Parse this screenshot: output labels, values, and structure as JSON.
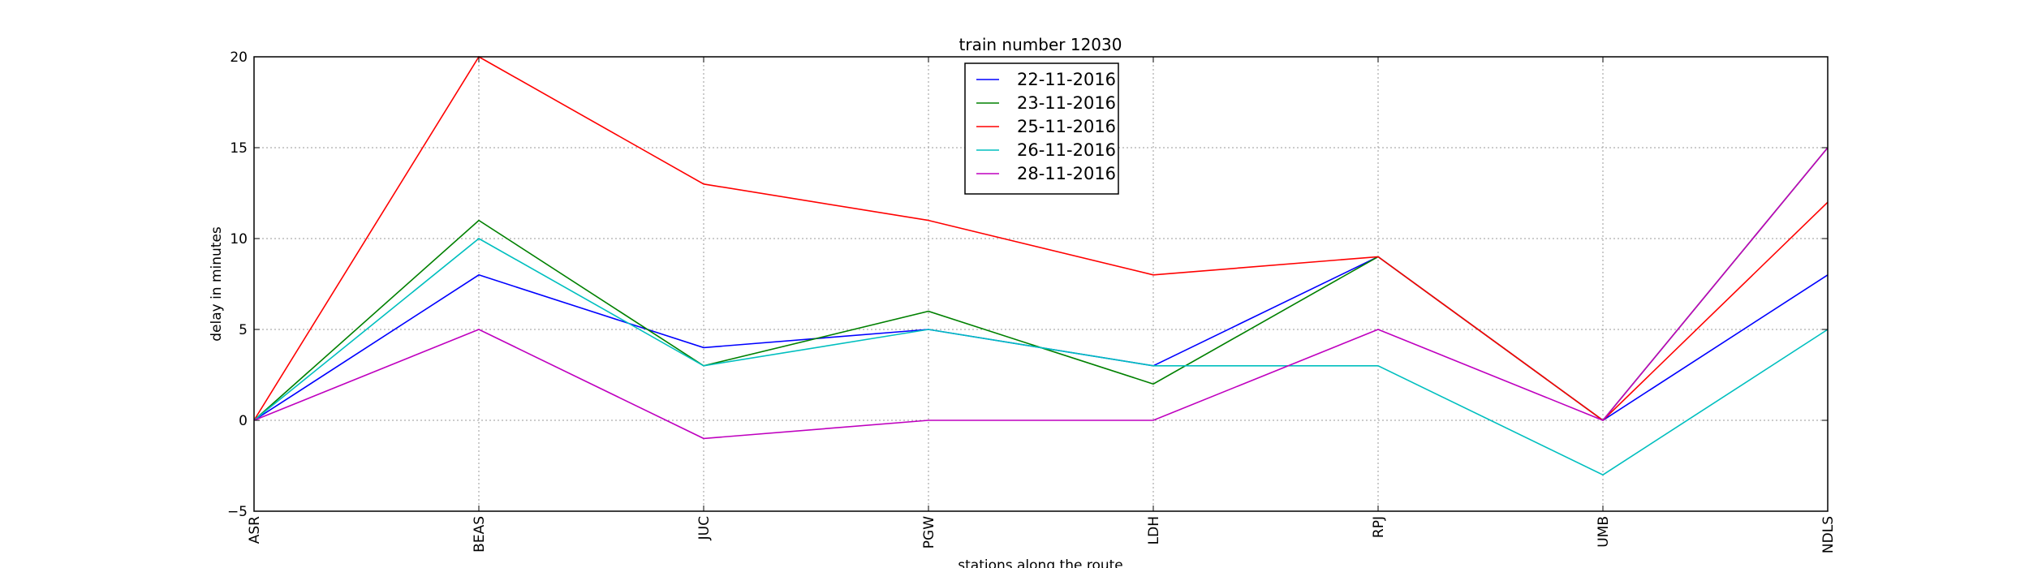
{
  "chart_data": {
    "type": "line",
    "title": "train number 12030",
    "xlabel": "stations along the route",
    "ylabel": "delay in minutes",
    "categories": [
      "ASR",
      "BEAS",
      "JUC",
      "PGW",
      "LDH",
      "RPJ",
      "UMB",
      "NDLS"
    ],
    "ylim": [
      -5,
      20
    ],
    "yticks": [
      -5,
      0,
      5,
      10,
      15,
      20
    ],
    "grid": true,
    "legend_position": "top-center",
    "series": [
      {
        "name": "22-11-2016",
        "color": "#0000ff",
        "values": [
          0,
          8,
          4,
          5,
          3,
          9,
          0,
          8
        ]
      },
      {
        "name": "23-11-2016",
        "color": "#008000",
        "values": [
          0,
          11,
          3,
          6,
          2,
          9,
          0,
          15
        ]
      },
      {
        "name": "25-11-2016",
        "color": "#ff0000",
        "values": [
          0,
          20,
          13,
          11,
          8,
          9,
          0,
          12
        ]
      },
      {
        "name": "26-11-2016",
        "color": "#00bfbf",
        "values": [
          0,
          10,
          3,
          5,
          3,
          3,
          -3,
          5
        ]
      },
      {
        "name": "28-11-2016",
        "color": "#bf00bf",
        "values": [
          0,
          5,
          -1,
          0,
          0,
          5,
          0,
          15
        ]
      }
    ]
  }
}
